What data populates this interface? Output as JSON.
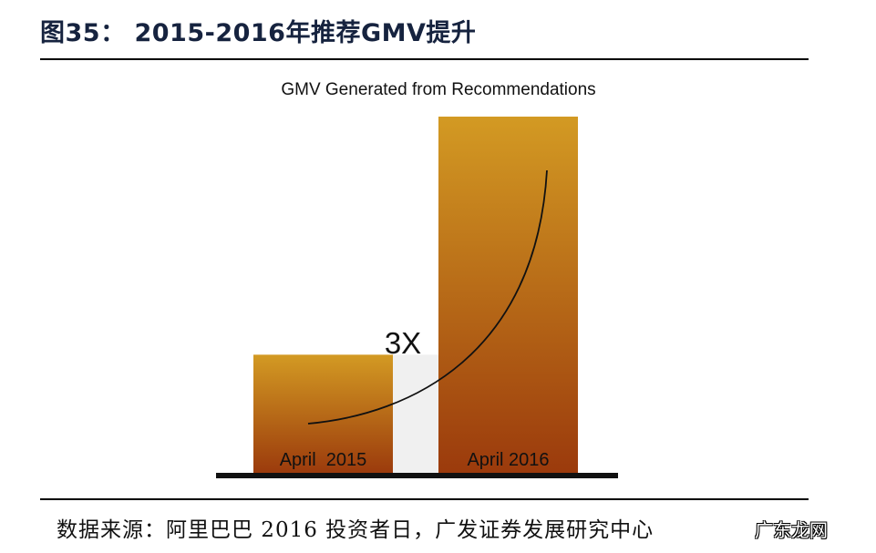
{
  "figure": {
    "title": "图35：  2015-2016年推荐GMV提升",
    "source": "数据来源：阿里巴巴 2016 投资者日，广发证券发展研究中心",
    "watermark": "广东龙网"
  },
  "chart_data": {
    "type": "bar",
    "title": "GMV Generated from Recommendations",
    "categories": [
      "April  2015",
      "April 2016"
    ],
    "values": [
      1,
      3
    ],
    "ylim": [
      0,
      3.5
    ],
    "annotation": "3X",
    "grid": false,
    "legend": "none",
    "colors": {
      "top": "#d39a23",
      "bottom": "#9b3a0c",
      "gap": "#f0f0f0",
      "axis": "#111111"
    }
  }
}
